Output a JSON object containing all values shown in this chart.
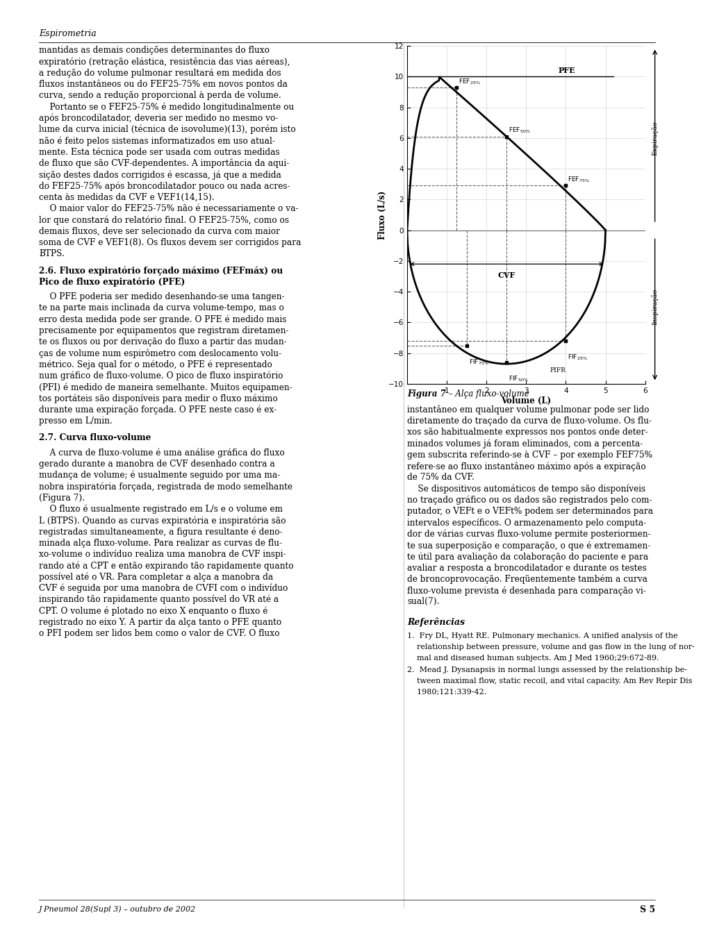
{
  "title": "Espirometria",
  "figure_caption_bold": "Figura 7",
  "figure_caption_rest": " – Alça fluxo-volume",
  "ylabel": "Fluxo (L/s)",
  "xlabel": "Volume (L)",
  "ylim": [
    -10,
    12
  ],
  "xlim": [
    0,
    6
  ],
  "yticks": [
    -10,
    -8,
    -6,
    -4,
    -2,
    0,
    2,
    4,
    6,
    8,
    10,
    12
  ],
  "xticks": [
    1,
    2,
    3,
    4,
    5,
    6
  ],
  "pfe_label": "PFE",
  "fef25_x": 1.25,
  "fef25_y": 9.3,
  "fef50_x": 2.5,
  "fef50_y": 6.1,
  "fef75_x": 4.0,
  "fef75_y": 2.9,
  "fif75_x": 1.5,
  "fif75_y": -7.5,
  "fif50_x": 2.5,
  "fif50_y": -8.6,
  "fif25_x": 4.0,
  "fif25_y": -7.2,
  "cvf_y": -2.2,
  "pifr_x": 3.6,
  "pifr_y": -8.6,
  "bg_color": "#ffffff",
  "curve_color": "#000000",
  "dashed_color": "#666666",
  "left_col_lines": [
    "mantidas as demais condições determinantes do fluxo",
    "expiratório (retração elástica, resistência das vias aéreas),",
    "a redução do volume pulmonar resultará em medida dos",
    "fluxos instantâneos ou do FEF25-75% em novos pontos da",
    "curva, sendo a redução proporcional à perda de volume.",
    "    Portanto se o FEF25-75% é medido longitudinalmente ou",
    "após broncodilatador, deveria ser medido no mesmo vo-",
    "lume da curva inicial (técnica de isovolume)(13), porém isto",
    "não é feito pelos sistemas informatizados em uso atual-",
    "mente. Esta técnica pode ser usada com outras medidas",
    "de fluxo que são CVF-dependentes. A importância da aqui-",
    "sição destes dados corrigidos é escassa, já que a medida",
    "do FEF25-75% após broncodilatador pouco ou nada acres-",
    "centa às medidas da CVF e VEF1(14,15).",
    "    O maior valor do FEF25-75% não é necessariamente o va-",
    "lor que constará do relatório final. O FEF25-75%, como os",
    "demais fluxos, deve ser selecionado da curva com maior",
    "soma de CVF e VEF1(8). Os fluxos devem ser corrigidos para",
    "BTPS."
  ],
  "sec26_title1": "2.6. Fluxo expiratório forçado máximo (FEFmáx) ou",
  "sec26_title2": "Pico de fluxo expiratório (PFE)",
  "sec26_body": [
    "    O PFE poderia ser medido desenhando-se uma tangen-",
    "te na parte mais inclinada da curva volume-tempo, mas o",
    "erro desta medida pode ser grande. O PFE é medido mais",
    "precisamente por equipamentos que registram diretamen-",
    "te os fluxos ou por derivação do fluxo a partir das mudan-",
    "ças de volume num espirômetro com deslocamento volu-",
    "métrico. Seja qual for o método, o PFE é representado",
    "num gráfico de fluxo-volume. O pico de fluxo inspiratório",
    "(PFI) é medido de maneira semelhante. Muitos equipamen-",
    "tos portáteis são disponíveis para medir o fluxo máximo",
    "durante uma expiração forçada. O PFE neste caso é ex-",
    "presso em L/min."
  ],
  "sec27_title": "2.7. Curva fluxo-volume",
  "sec27_body": [
    "    A curva de fluxo-volume é uma análise gráfica do fluxo",
    "gerado durante a manobra de CVF desenhado contra a",
    "mudança de volume; é usualmente seguido por uma ma-",
    "nobra inspiratória forçada, registrada de modo semelhante",
    "(Figura 7).",
    "    O fluxo é usualmente registrado em L/s e o volume em",
    "L (BTPS). Quando as curvas expiratória e inspiratória são",
    "registradas simultaneamente, a figura resultante é deno-",
    "minada alça fluxo-volume. Para realizar as curvas de flu-",
    "xo-volume o indivíduo realiza uma manobra de CVF inspi-",
    "rando até a CPT e então expirando tão rapidamente quanto",
    "possível até o VR. Para completar a alça a manobra da",
    "CVF é seguida por uma manobra de CVFI com o indivíduo",
    "inspirando tão rapidamente quanto possível do VR até a",
    "CPT. O volume é plotado no eixo X enquanto o fluxo é",
    "registrado no eixo Y. A partir da alça tanto o PFE quanto",
    "o PFI podem ser lidos bem como o valor de CVF. O fluxo"
  ],
  "right_text_lines": [
    "instantâneo em qualquer volume pulmonar pode ser lido",
    "diretamente do traçado da curva de fluxo-volume. Os flu-",
    "xos são habitualmente expressos nos pontos onde deter-",
    "minados volumes já foram eliminados, com a percenta-",
    "gem subscrita referindo-se à CVF – por exemplo FEF75%",
    "refere-se ao fluxo instantâneo máximo após a expiração",
    "de 75% da CVF.",
    "    Se dispositivos automáticos de tempo são disponíveis",
    "no traçado gráfico ou os dados são registrados pelo com-",
    "putador, o VEFt e o VEFt% podem ser determinados para",
    "intervalos específicos. O armazenamento pelo computa-",
    "dor de várias curvas fluxo-volume permite posteriormen-",
    "te sua superposição e comparação, o que é extremamen-",
    "te útil para avaliação da colaboração do paciente e para",
    "avaliar a resposta a broncodilatador e durante os testes",
    "de broncoprovocação. Freqüentemente também a curva",
    "fluxo-volume prevista é desenhada para comparação vi-",
    "sual(7)."
  ],
  "refs_title": "Referências",
  "refs": [
    "1.  Fry DL, Hyatt RE. Pulmonary mechanics. A unified analysis of the",
    "    relationship between pressure, volume and gas flow in the lung of nor-",
    "    mal and diseased human subjects. Am J Med 1960;29:672-89.",
    "2.  Mead J. Dysanapsis in normal lungs assessed by the relationship be-",
    "    tween maximal flow, static recoil, and vital capacity. Am Rev Repir Dis",
    "    1980;121:339-42."
  ],
  "footer_left": "J Pneumol 28(Supl 3) – outubro de 2002",
  "footer_right": "S 5"
}
